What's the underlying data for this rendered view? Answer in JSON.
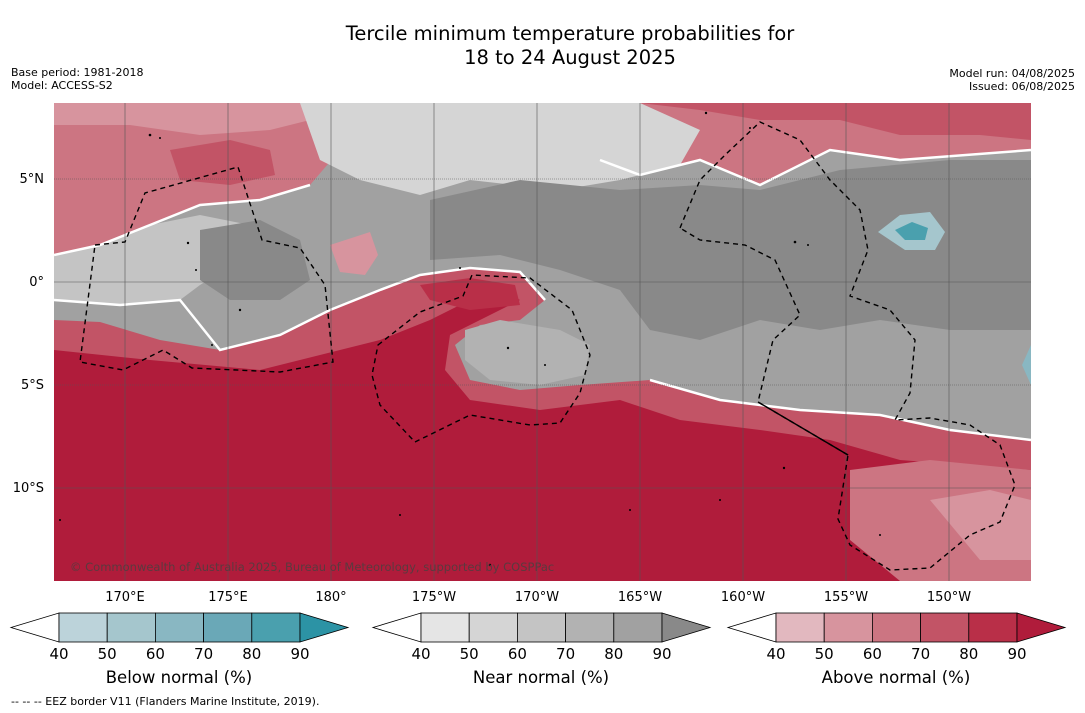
{
  "title": {
    "line1": "Tercile minimum temperature probabilities for",
    "line2": "18 to 24 August 2025"
  },
  "meta": {
    "base_period": "Base period: 1981-2018",
    "model": "Model: ACCESS-S2",
    "model_run": "Model run: 04/08/2025",
    "issued": "Issued: 06/08/2025"
  },
  "map": {
    "lat_labels": [
      "5°N",
      "0°",
      "5°S",
      "10°S"
    ],
    "lon_labels": [
      "170°E",
      "175°E",
      "180°",
      "175°W",
      "170°W",
      "165°W",
      "160°W",
      "155°W",
      "150°W"
    ],
    "copyright": "© Commonwealth of Australia 2025, Bureau of Meteorology, supported by COSPPac",
    "colors": {
      "land": "#000000",
      "grid": "#555555",
      "eez_border": "#000000"
    }
  },
  "legend": {
    "below": {
      "label": "Below normal (%)",
      "ticks": [
        "40",
        "50",
        "60",
        "70",
        "80",
        "90"
      ],
      "colors": [
        "#ffffff",
        "#bcd3da",
        "#a5c6cd",
        "#89b7c2",
        "#6aa8b7",
        "#4aa0ae",
        "#2c93a5"
      ]
    },
    "near": {
      "label": "Near normal (%)",
      "ticks": [
        "40",
        "50",
        "60",
        "70",
        "80",
        "90"
      ],
      "colors": [
        "#ffffff",
        "#e5e5e5",
        "#d5d5d5",
        "#c4c4c4",
        "#b2b2b2",
        "#a1a1a1",
        "#898989"
      ]
    },
    "above": {
      "label": "Above normal (%)",
      "ticks": [
        "40",
        "50",
        "60",
        "70",
        "80",
        "90"
      ],
      "colors": [
        "#ffffff",
        "#e2b8bf",
        "#d7949e",
        "#cc7582",
        "#c25466",
        "#b92f48",
        "#b01c3b"
      ]
    }
  },
  "footnote": "--  --  -- EEZ border V11 (Flanders Marine Institute, 2019)."
}
